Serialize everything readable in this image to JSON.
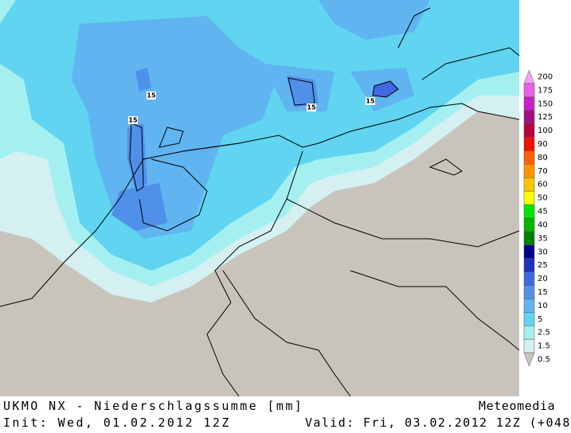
{
  "footer": {
    "title": "UKMO NX - Niederschlagssumme [mm]",
    "brand": "Meteomedia",
    "init": "Init: Wed, 01.02.2012 12Z",
    "valid": "Valid: Fri, 03.02.2012 12Z (+048)"
  },
  "contour_labels": [
    "15",
    "15",
    "15",
    "15"
  ],
  "legend": [
    {
      "label": "200",
      "color": "#f4a0f4"
    },
    {
      "label": "175",
      "color": "#e860e8"
    },
    {
      "label": "150",
      "color": "#c820c8"
    },
    {
      "label": "125",
      "color": "#a01080"
    },
    {
      "label": "100",
      "color": "#b80038"
    },
    {
      "label": "90",
      "color": "#f01000"
    },
    {
      "label": "80",
      "color": "#ff6000"
    },
    {
      "label": "70",
      "color": "#ff9400"
    },
    {
      "label": "60",
      "color": "#ffc400"
    },
    {
      "label": "50",
      "color": "#ffff00"
    },
    {
      "label": "45",
      "color": "#00e800"
    },
    {
      "label": "40",
      "color": "#00b400"
    },
    {
      "label": "35",
      "color": "#008000"
    },
    {
      "label": "30",
      "color": "#000090"
    },
    {
      "label": "25",
      "color": "#2030c0"
    },
    {
      "label": "20",
      "color": "#4068e0"
    },
    {
      "label": "15",
      "color": "#5090e8"
    },
    {
      "label": "10",
      "color": "#60b4f0"
    },
    {
      "label": "5",
      "color": "#60d4f0"
    },
    {
      "label": "2.5",
      "color": "#a4f0f0"
    },
    {
      "label": "1.5",
      "color": "#d4f0f0"
    },
    {
      "label": "0.5",
      "color": "#c8c4bc"
    }
  ]
}
